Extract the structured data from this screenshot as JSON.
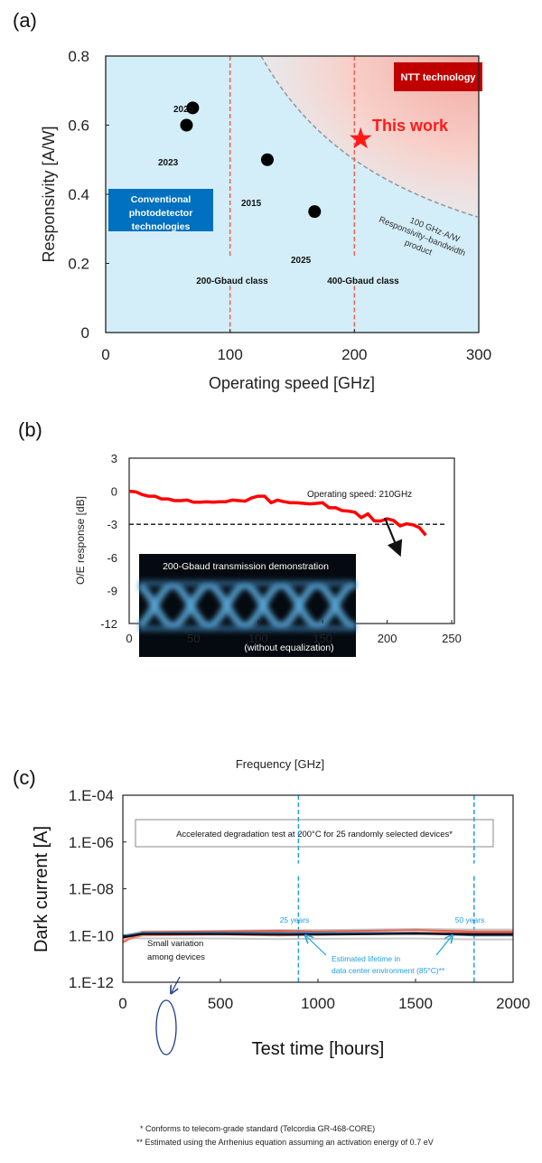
{
  "panel_labels": {
    "a": "(a)",
    "b": "(b)",
    "c": "(c)"
  },
  "chart_data": [
    {
      "type": "scatter",
      "panel": "(a)",
      "xlabel": "Operating speed [GHz]",
      "ylabel": "Responsivity [A/W]",
      "xlim": [
        0,
        300
      ],
      "ylim": [
        0,
        0.8
      ],
      "xticks": [
        "0",
        "100",
        "200",
        "300"
      ],
      "yticks": [
        "0",
        "0.2",
        "0.4",
        "0.6",
        "0.8"
      ],
      "grid": false,
      "points": [
        {
          "label": "2020",
          "x": 70,
          "y": 0.65
        },
        {
          "label": "2023",
          "x": 65,
          "y": 0.6
        },
        {
          "label": "2015",
          "x": 130,
          "y": 0.5
        },
        {
          "label": "2025",
          "x": 168,
          "y": 0.35
        }
      ],
      "highlight": {
        "label": "This work",
        "x": 205,
        "y": 0.56,
        "color": "#ff1a1a"
      },
      "reference_curve": {
        "product_GHz_AW": 100,
        "labels": [
          "100 GHz·A/W",
          "Responsivity–bandwidth",
          "product"
        ]
      },
      "vertical_lines": [
        {
          "x": 100,
          "label": "200-Gbaud class"
        },
        {
          "x": 200,
          "label": "400-Gbaud class"
        }
      ],
      "regions": [
        {
          "label": "NTT technology",
          "color": "#c00000"
        },
        {
          "label": "Conventional photodetector technologies",
          "lines": [
            "Conventional",
            "photodetector",
            "technologies"
          ],
          "color": "#0070c0"
        }
      ]
    },
    {
      "type": "line",
      "panel": "(b)",
      "xlabel": "Frequency [GHz]",
      "ylabel": "O/E  response [dB]",
      "xlim": [
        0,
        250
      ],
      "ylim": [
        -12,
        3
      ],
      "xticks": [
        "0",
        "50",
        "100",
        "150",
        "200",
        "250"
      ],
      "yticks": [
        "-12",
        "-9",
        "-6",
        "-3",
        "0",
        "3"
      ],
      "series": [
        {
          "color": "#ff0000",
          "x": [
            0,
            5,
            10,
            15,
            20,
            25,
            30,
            35,
            40,
            45,
            50,
            55,
            60,
            65,
            70,
            75,
            80,
            85,
            90,
            95,
            100,
            105,
            110,
            115,
            120,
            125,
            130,
            140,
            145,
            150,
            155,
            160,
            165,
            170,
            175,
            180,
            185,
            190,
            195,
            200,
            205,
            210,
            215,
            220,
            225,
            230
          ],
          "y": [
            0,
            -0.05,
            -0.3,
            -0.45,
            -0.45,
            -0.7,
            -0.7,
            -0.85,
            -0.85,
            -0.8,
            -1.0,
            -1.0,
            -0.95,
            -1.0,
            -0.95,
            -0.95,
            -0.8,
            -0.85,
            -0.9,
            -0.6,
            -0.45,
            -0.45,
            -1.05,
            -0.8,
            -0.95,
            -1.05,
            -1.05,
            -1.15,
            -1.1,
            -1.05,
            -1.5,
            -1.5,
            -1.75,
            -1.8,
            -1.9,
            -2.4,
            -2.05,
            -2.7,
            -2.7,
            -2.5,
            -2.65,
            -3.15,
            -2.95,
            -3.05,
            -3.3,
            -4.0
          ]
        }
      ],
      "reference_line": {
        "y": -3,
        "style": "dashed"
      },
      "annotation": "Operating speed: 210GHz",
      "inset": {
        "title": "200-Gbaud transmission demonstration",
        "caption": "(without equalization)"
      }
    },
    {
      "type": "line",
      "panel": "(c)",
      "xlabel": "Test time [hours]",
      "ylabel": "Dark current [A]",
      "xlim": [
        0,
        2000
      ],
      "ylim": [
        1e-12,
        0.0001
      ],
      "yscale": "log",
      "xticks": [
        "0",
        "500",
        "1000",
        "1500",
        "2000"
      ],
      "yticks": [
        "1.E-12",
        "1.E-10",
        "1.E-08",
        "1.E-06",
        "1.E-04"
      ],
      "x": [
        0,
        100,
        500,
        800,
        1000,
        1500,
        1800,
        2000
      ],
      "series": [
        {
          "color": "#bbbbbb",
          "y": [
            9e-11,
            1.5e-10,
            1.6e-10,
            1.7e-10,
            1.7e-10,
            1.9e-10,
            1.8e-10,
            1.8e-10
          ]
        },
        {
          "color": "#c0c0c0",
          "y": [
            8e-11,
            7.5e-11,
            7.5e-11,
            7e-11,
            7.2e-11,
            7.5e-11,
            6.8e-11,
            6.8e-11
          ]
        },
        {
          "color": "#e8452c",
          "y": [
            5e-11,
            1.4e-10,
            1.5e-10,
            1.6e-10,
            1.5e-10,
            1.7e-10,
            1.5e-10,
            1.5e-10
          ]
        },
        {
          "color": "#f08070",
          "y": [
            6e-11,
            1e-10,
            1.1e-10,
            1e-10,
            1.1e-10,
            1.2e-10,
            1.1e-10,
            1.1e-10
          ]
        },
        {
          "color": "#8b1a1a",
          "y": [
            8e-11,
            1.2e-10,
            1.25e-10,
            1.3e-10,
            1.2e-10,
            1.3e-10,
            1.25e-10,
            1.25e-10
          ]
        },
        {
          "color": "#2e75b6",
          "y": [
            1e-10,
            1.3e-10,
            1.35e-10,
            1.3e-10,
            1.3e-10,
            1.3e-10,
            1e-10,
            1e-10
          ]
        },
        {
          "color": "#000000",
          "y": [
            8.5e-11,
            1.15e-10,
            1.15e-10,
            1.1e-10,
            1.1e-10,
            1.2e-10,
            1.1e-10,
            1.1e-10
          ]
        }
      ],
      "vertical_lines": [
        {
          "x": 900,
          "label": "25 years"
        },
        {
          "x": 1800,
          "label": "50 years"
        }
      ],
      "accent_color": "#1ea0e0",
      "box_text": "Accelerated degradation test at 200°C for 25 randomly selected devices*",
      "variation_note": [
        "Small variation",
        "among devices"
      ],
      "lifetime_note": [
        "Estimated lifetime in",
        "data center environment (85°C)**"
      ],
      "footnotes": [
        "* Conforms to telecom-grade standard (Telcordia GR-468-CORE)",
        "** Estimated using the Arrhenius equation assuming an activation energy of 0.7 eV"
      ]
    }
  ]
}
